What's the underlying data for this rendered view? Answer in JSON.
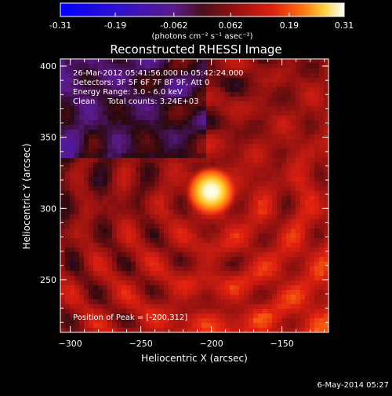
{
  "colorbar": {
    "tick_labels": [
      "-0.31",
      "-0.19",
      "-0.062",
      "0.062",
      "0.19",
      "0.31"
    ],
    "tick_values": [
      -0.31,
      -0.19,
      -0.062,
      0.062,
      0.19,
      0.31
    ],
    "unit_label": "(photons cm⁻² s⁻¹ asec⁻²)",
    "range": [
      -0.31,
      0.31
    ]
  },
  "chart_data": {
    "type": "heatmap",
    "title": "Reconstructed RHESSI Image",
    "xlabel": "Heliocentric X (arcsec)",
    "ylabel": "Heliocentric Y (arcsec)",
    "xlim": [
      -307,
      -117
    ],
    "ylim": [
      213,
      405
    ],
    "x_ticks": [
      -300,
      -250,
      -200,
      -150
    ],
    "y_ticks": [
      250,
      300,
      350,
      400
    ],
    "x_tick_labels": [
      "−300",
      "−250",
      "−200",
      "−150"
    ],
    "y_tick_labels": [
      "250",
      "300",
      "350",
      "400"
    ],
    "peak": {
      "x": -200,
      "y": 312,
      "value": 0.31
    },
    "colormap": "rhessi-blue-purple-red-yellow-white",
    "annotations": [
      "26-Mar-2012 05:41:56.000 to 05:42:24.000",
      "Detectors: 3F 5F 6F 7F 8F 9F, Att 0",
      "Energy Range: 3.0 - 6.0 keV",
      "Clean     Total counts: 3.24E+03"
    ],
    "peak_label": "Position of Peak = [-200,312]"
  },
  "footer": {
    "timestamp": "6-May-2014 05:27"
  }
}
